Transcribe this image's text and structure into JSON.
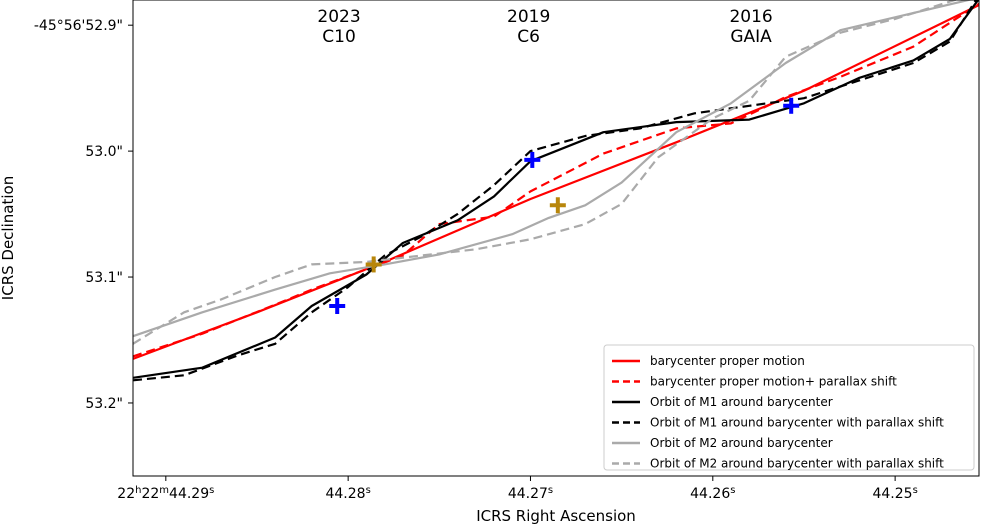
{
  "chart_data": {
    "type": "line",
    "xlabel": "ICRS Right Ascension",
    "ylabel": "ICRS Declination",
    "x_unit_note": "seconds of RA past 22h22m",
    "y_unit_note": "arcseconds past -45°56'",
    "xlim": [
      44.2918,
      44.2454
    ],
    "ylim": [
      52.88,
      53.258
    ],
    "xticks": [
      {
        "value": 44.29,
        "label_main": "22",
        "sup1": "h",
        "mid": "22",
        "sup2": "m",
        "rest": "44.29",
        "sup3": "s"
      },
      {
        "value": 44.28,
        "label_main": "44.28",
        "sup3": "s"
      },
      {
        "value": 44.27,
        "label_main": "44.27",
        "sup3": "s"
      },
      {
        "value": 44.26,
        "label_main": "44.26",
        "sup3": "s"
      },
      {
        "value": 44.25,
        "label_main": "44.25",
        "sup3": "s"
      }
    ],
    "yticks": [
      {
        "value": 52.9,
        "label": "-45°56'52.9\""
      },
      {
        "value": 53.0,
        "label": "53.0\""
      },
      {
        "value": 53.1,
        "label": "53.1\""
      },
      {
        "value": 53.2,
        "label": "53.2\""
      }
    ],
    "epoch_annotations": [
      {
        "year": "2023",
        "instrument": "C10",
        "x": 44.2805
      },
      {
        "year": "2019",
        "instrument": "C6",
        "x": 44.2701
      },
      {
        "year": "2016",
        "instrument": "GAIA",
        "x": 44.2579
      }
    ],
    "series": [
      {
        "name": "barycenter proper motion",
        "color": "#ff0000",
        "style": "solid",
        "points": [
          [
            44.2918,
            53.165
          ],
          [
            44.285,
            53.128
          ],
          [
            44.278,
            53.088
          ],
          [
            44.27,
            53.038
          ],
          [
            44.262,
            52.993
          ],
          [
            44.255,
            52.952
          ],
          [
            44.2454,
            52.884
          ]
        ]
      },
      {
        "name": "barycenter proper motion+ parallax shift",
        "color": "#ff0000",
        "style": "dashed",
        "points": [
          [
            44.2918,
            53.163
          ],
          [
            44.288,
            53.145
          ],
          [
            44.284,
            53.122
          ],
          [
            44.282,
            53.11
          ],
          [
            44.277,
            53.083
          ],
          [
            44.275,
            53.058
          ],
          [
            44.272,
            53.052
          ],
          [
            44.27,
            53.032
          ],
          [
            44.266,
            53.002
          ],
          [
            44.262,
            52.982
          ],
          [
            44.259,
            52.978
          ],
          [
            44.256,
            52.957
          ],
          [
            44.253,
            52.941
          ],
          [
            44.249,
            52.917
          ],
          [
            44.2454,
            52.883
          ]
        ]
      },
      {
        "name": "Orbit of M1 around barycenter",
        "color": "#000000",
        "style": "solid",
        "points": [
          [
            44.2918,
            53.18
          ],
          [
            44.288,
            53.172
          ],
          [
            44.284,
            53.148
          ],
          [
            44.282,
            53.123
          ],
          [
            44.279,
            53.098
          ],
          [
            44.277,
            53.073
          ],
          [
            44.274,
            53.055
          ],
          [
            44.272,
            53.036
          ],
          [
            44.27,
            53.008
          ],
          [
            44.266,
            52.985
          ],
          [
            44.262,
            52.977
          ],
          [
            44.258,
            52.975
          ],
          [
            44.255,
            52.962
          ],
          [
            44.252,
            52.942
          ],
          [
            44.249,
            52.928
          ],
          [
            44.247,
            52.911
          ],
          [
            44.2454,
            52.879
          ]
        ]
      },
      {
        "name": "Orbit of M1 around barycenter with parallax shift",
        "color": "#000000",
        "style": "dashed",
        "points": [
          [
            44.2918,
            53.182
          ],
          [
            44.289,
            53.178
          ],
          [
            44.286,
            53.162
          ],
          [
            44.284,
            53.153
          ],
          [
            44.282,
            53.128
          ],
          [
            44.28,
            53.108
          ],
          [
            44.278,
            53.083
          ],
          [
            44.276,
            53.068
          ],
          [
            44.274,
            53.05
          ],
          [
            44.272,
            53.027
          ],
          [
            44.27,
            53.0
          ],
          [
            44.267,
            52.988
          ],
          [
            44.264,
            52.982
          ],
          [
            44.261,
            52.97
          ],
          [
            44.258,
            52.964
          ],
          [
            44.255,
            52.958
          ],
          [
            44.252,
            52.944
          ],
          [
            44.249,
            52.93
          ],
          [
            44.247,
            52.913
          ],
          [
            44.2454,
            52.876
          ]
        ]
      },
      {
        "name": "Orbit of M2 around barycenter",
        "color": "#aaaaaa",
        "style": "solid",
        "points": [
          [
            44.2918,
            53.147
          ],
          [
            44.288,
            53.128
          ],
          [
            44.284,
            53.11
          ],
          [
            44.281,
            53.097
          ],
          [
            44.278,
            53.09
          ],
          [
            44.275,
            53.082
          ],
          [
            44.271,
            53.066
          ],
          [
            44.269,
            53.053
          ],
          [
            44.267,
            53.043
          ],
          [
            44.265,
            53.025
          ],
          [
            44.262,
            52.985
          ],
          [
            44.259,
            52.962
          ],
          [
            44.256,
            52.93
          ],
          [
            44.253,
            52.904
          ],
          [
            44.2454,
            52.878
          ]
        ]
      },
      {
        "name": "Orbit of M2 around barycenter with parallax shift",
        "color": "#aaaaaa",
        "style": "dashed",
        "points": [
          [
            44.2918,
            53.153
          ],
          [
            44.289,
            53.128
          ],
          [
            44.287,
            53.118
          ],
          [
            44.284,
            53.1
          ],
          [
            44.282,
            53.09
          ],
          [
            44.279,
            53.088
          ],
          [
            44.276,
            53.083
          ],
          [
            44.273,
            53.078
          ],
          [
            44.27,
            53.07
          ],
          [
            44.267,
            53.058
          ],
          [
            44.265,
            53.042
          ],
          [
            44.263,
            53.005
          ],
          [
            44.26,
            52.974
          ],
          [
            44.258,
            52.96
          ],
          [
            44.256,
            52.925
          ],
          [
            44.253,
            52.906
          ],
          [
            44.25,
            52.895
          ],
          [
            44.2454,
            52.874
          ]
        ]
      }
    ],
    "markers": [
      {
        "name": "M1 position 2023",
        "x": 44.2806,
        "y": 53.123,
        "color": "#0000ff"
      },
      {
        "name": "M1 position 2019",
        "x": 44.2699,
        "y": 53.007,
        "color": "#0000ff"
      },
      {
        "name": "M1 position 2016",
        "x": 44.2557,
        "y": 52.964,
        "color": "#0000ff"
      },
      {
        "name": "M2 position 2023",
        "x": 44.2786,
        "y": 53.09,
        "color": "#b8860b"
      },
      {
        "name": "M2 position 2019",
        "x": 44.2685,
        "y": 53.043,
        "color": "#b8860b"
      }
    ],
    "legend": {
      "position": "lower-right"
    }
  }
}
